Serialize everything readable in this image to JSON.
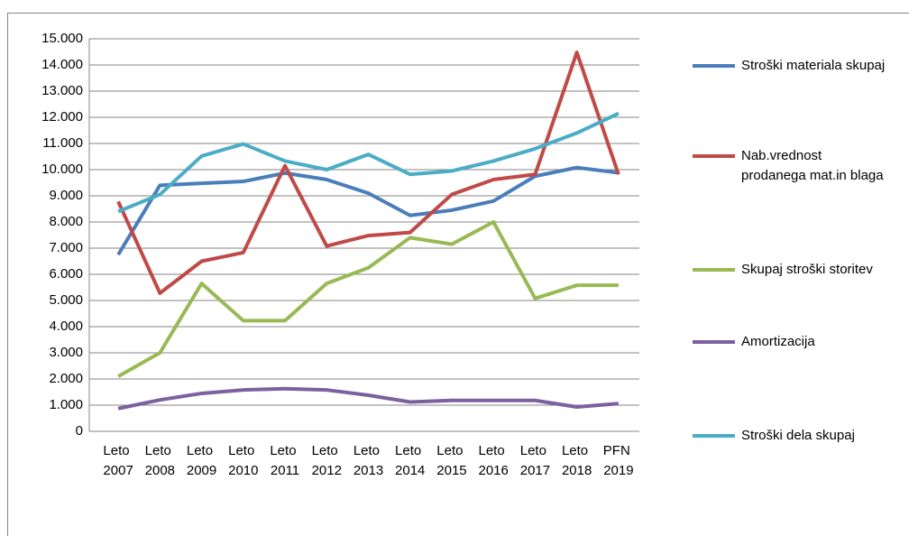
{
  "chart_data": {
    "type": "line",
    "categories": [
      "Leto 2007",
      "Leto 2008",
      "Leto 2009",
      "Leto 2010",
      "Leto 2011",
      "Leto 2012",
      "Leto 2013",
      "Leto 2014",
      "Leto 2015",
      "Leto 2016",
      "Leto 2017",
      "Leto 2018",
      "PFN 2019"
    ],
    "series": [
      {
        "name": "Stroški materiala skupaj",
        "color": "#4a7ebb",
        "values": [
          6750,
          9400,
          9480,
          9550,
          9870,
          9620,
          9100,
          8250,
          8450,
          8800,
          9750,
          10080,
          9880
        ]
      },
      {
        "name": "Nab.vrednost prodanega mat.in blaga",
        "color": "#be4b48",
        "values": [
          8780,
          5280,
          6500,
          6830,
          10150,
          7080,
          7480,
          7600,
          9050,
          9620,
          9820,
          14480,
          9820
        ]
      },
      {
        "name": "Skupaj stroški storitev",
        "color": "#98b954",
        "values": [
          2100,
          3000,
          5650,
          4230,
          4230,
          5650,
          6250,
          7400,
          7150,
          8000,
          5080,
          5580,
          5580
        ]
      },
      {
        "name": "Amortizacija",
        "color": "#7d60a0",
        "values": [
          870,
          1200,
          1450,
          1580,
          1630,
          1580,
          1380,
          1120,
          1180,
          1180,
          1180,
          930,
          1060
        ]
      },
      {
        "name": "Stroški dela skupaj",
        "color": "#4bacc6",
        "values": [
          8400,
          9050,
          10520,
          10980,
          10330,
          10000,
          10580,
          9820,
          9950,
          10330,
          10800,
          11400,
          12150
        ]
      }
    ],
    "ylim": [
      0,
      15000
    ],
    "yticks": [
      0,
      {
        "value": 1000,
        "label": "1.000"
      },
      {
        "value": 2000,
        "label": "2.000"
      },
      {
        "value": 3000,
        "label": "3.000"
      },
      {
        "value": 4000,
        "label": "4.000"
      },
      {
        "value": 5000,
        "label": "5.000"
      },
      {
        "value": 6000,
        "label": "6.000"
      },
      {
        "value": 7000,
        "label": "7.000"
      },
      {
        "value": 8000,
        "label": "8.000"
      },
      {
        "value": 9000,
        "label": "9.000"
      },
      {
        "value": 10000,
        "label": "10.000"
      },
      {
        "value": 11000,
        "label": "11.000"
      },
      {
        "value": 12000,
        "label": "12.000"
      },
      {
        "value": 13000,
        "label": "13.000"
      },
      {
        "value": 14000,
        "label": "14.000"
      },
      {
        "value": 15000,
        "label": "15.000"
      }
    ],
    "grid": true,
    "legend": "right"
  }
}
